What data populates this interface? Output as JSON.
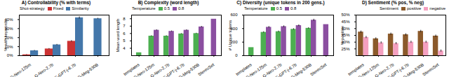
{
  "chart_data": [
    {
      "type": "bar",
      "title": "A) Controllability (% with terms)",
      "ylabel": "% with keywords",
      "legend_title": "Shot-strategy",
      "legend": "upper left",
      "categories": [
        "G-Neo-125m",
        "G-Neo-2.7b",
        "G-GPT-j-6.7b",
        "G-Meg-530B"
      ],
      "series": [
        {
          "name": "Fixed",
          "color": "#cc3333",
          "values": [
            1.0,
            7.5,
            16.0,
            null
          ],
          "errors": [
            0.3,
            0.5,
            0.8,
            null
          ]
        },
        {
          "name": "Similarity",
          "color": "#4477aa",
          "values": [
            5.5,
            12.0,
            42.0,
            41.0
          ],
          "errors": [
            0.4,
            0.6,
            1.2,
            0.5
          ]
        }
      ],
      "ylim": [
        0,
        45
      ],
      "yticks": [
        {
          "value": 0,
          "label": "0%"
        },
        {
          "value": 10,
          "label": "10%"
        },
        {
          "value": 20,
          "label": "20%"
        },
        {
          "value": 30,
          "label": "30%"
        },
        {
          "value": 40,
          "label": "40%"
        }
      ]
    },
    {
      "type": "bar",
      "title": "B) Complexity (word length)",
      "ylabel": "Mean word length",
      "legend_title": "Temperature",
      "legend": "upper left",
      "categories": [
        "templates",
        "G-Neo-125m",
        "G-Neo-2.7b",
        "G-GPT-j-6.7b",
        "G-Meg-530B",
        "StereoSet"
      ],
      "series": [
        {
          "name": "0.5",
          "color": "#4caf50",
          "values": [
            3.4,
            5.65,
            5.65,
            5.95,
            6.0,
            null
          ],
          "errors": [
            null,
            0.06,
            0.06,
            0.05,
            0.05,
            null
          ]
        },
        {
          "name": "0.8",
          "color": "#8b4fa0",
          "values": [
            null,
            6.45,
            6.3,
            6.45,
            6.9,
            7.95
          ],
          "errors": [
            null,
            0.06,
            0.06,
            0.06,
            0.08,
            null
          ]
        }
      ],
      "ylim": [
        3.0,
        8.5
      ],
      "yticks": [
        4,
        5,
        6,
        7,
        8
      ]
    },
    {
      "type": "bar",
      "title": "C) Diversity (unique tokens in 200 gens.)",
      "ylabel": "# Unique tokens",
      "legend_title": "Temperature",
      "legend": "upper left",
      "categories": [
        "templates",
        "G-Neo-125m",
        "G-Neo-2.7b",
        "G-GPT-j-6.7b",
        "G-Meg-530B",
        "StereoSet"
      ],
      "series": [
        {
          "name": "0.5",
          "color": "#4caf50",
          "values": [
            120,
            345,
            355,
            390,
            405,
            null
          ],
          "errors": [
            null,
            10,
            10,
            10,
            10,
            null
          ]
        },
        {
          "name": "0.8",
          "color": "#8b4fa0",
          "values": [
            null,
            420,
            430,
            445,
            525,
            460
          ],
          "errors": [
            null,
            12,
            12,
            12,
            15,
            null
          ]
        }
      ],
      "ylim": [
        0,
        600
      ],
      "yticks": [
        0,
        200,
        400,
        600
      ]
    },
    {
      "type": "bar",
      "title": "D) Sentiment (% pos, % neg)",
      "ylabel": "% positive",
      "legend_title": "Sentiment",
      "legend": "upper right",
      "categories": [
        "templates",
        "G-Neo-125m",
        "G-Neo-2.7b",
        "G-GPT-j-6.7b",
        "G-Meg-530B",
        "StereoSet"
      ],
      "series": [
        {
          "name": "positive",
          "color": "#8b5a2b",
          "values": [
            37.5,
            32.5,
            36.0,
            35.5,
            38.0,
            34.5
          ],
          "errors": [
            0.8,
            0.8,
            0.8,
            0.8,
            0.8,
            0.8
          ]
        },
        {
          "name": "negative",
          "color": "#f4a0c0",
          "values": [
            33.5,
            29.5,
            29.0,
            30.0,
            30.0,
            23.5
          ],
          "errors": [
            0.8,
            0.8,
            0.8,
            0.8,
            0.8,
            0.8
          ]
        }
      ],
      "ylim": [
        20,
        50
      ],
      "yticks": [
        {
          "value": 25,
          "label": "25%"
        },
        {
          "value": 30,
          "label": "30%"
        },
        {
          "value": 35,
          "label": "35%"
        },
        {
          "value": 40,
          "label": "40%"
        },
        {
          "value": 45,
          "label": "45%"
        },
        {
          "value": 50,
          "label": "50%"
        }
      ]
    }
  ]
}
